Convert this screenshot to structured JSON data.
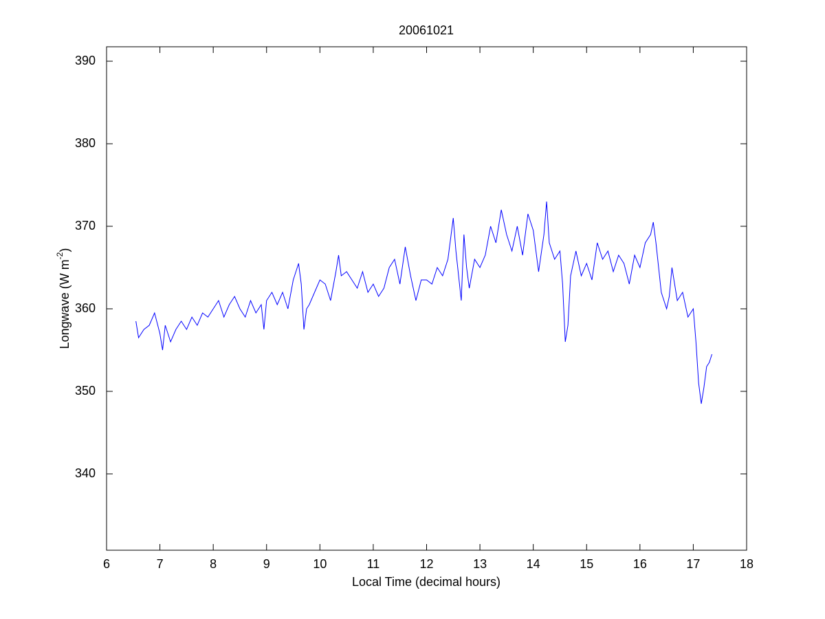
{
  "chart_data": {
    "type": "line",
    "title": "20061021",
    "xlabel": "Local Time (decimal hours)",
    "ylabel": {
      "text": "Longwave (W m",
      "superscript": "-2",
      "suffix": ")"
    },
    "xlim": [
      6,
      18
    ],
    "xticks": [
      6,
      7,
      8,
      9,
      10,
      11,
      12,
      13,
      14,
      15,
      16,
      17,
      18
    ],
    "ylim": [
      330.75,
      391.75
    ],
    "yticks": [
      340,
      350,
      360,
      370,
      380,
      390
    ],
    "series": [
      {
        "color": "#0000ff",
        "x": [
          6.55,
          6.6,
          6.7,
          6.8,
          6.9,
          7.0,
          7.05,
          7.1,
          7.2,
          7.3,
          7.4,
          7.5,
          7.6,
          7.7,
          7.8,
          7.9,
          8.0,
          8.1,
          8.2,
          8.3,
          8.4,
          8.5,
          8.6,
          8.7,
          8.8,
          8.9,
          8.95,
          9.0,
          9.1,
          9.2,
          9.3,
          9.4,
          9.5,
          9.6,
          9.65,
          9.7,
          9.75,
          9.8,
          9.9,
          10.0,
          10.1,
          10.2,
          10.3,
          10.35,
          10.4,
          10.5,
          10.6,
          10.7,
          10.8,
          10.9,
          11.0,
          11.1,
          11.2,
          11.3,
          11.4,
          11.5,
          11.6,
          11.7,
          11.8,
          11.9,
          12.0,
          12.1,
          12.2,
          12.3,
          12.4,
          12.5,
          12.55,
          12.6,
          12.65,
          12.7,
          12.75,
          12.8,
          12.9,
          13.0,
          13.1,
          13.2,
          13.3,
          13.4,
          13.5,
          13.6,
          13.7,
          13.8,
          13.9,
          14.0,
          14.1,
          14.2,
          14.25,
          14.3,
          14.4,
          14.5,
          14.55,
          14.6,
          14.65,
          14.7,
          14.8,
          14.9,
          15.0,
          15.1,
          15.2,
          15.3,
          15.4,
          15.5,
          15.6,
          15.7,
          15.8,
          15.9,
          16.0,
          16.1,
          16.2,
          16.25,
          16.3,
          16.4,
          16.5,
          16.55,
          16.6,
          16.7,
          16.8,
          16.9,
          17.0,
          17.05,
          17.1,
          17.15,
          17.2,
          17.25,
          17.3,
          17.35
        ],
        "values": [
          358.5,
          356.5,
          357.5,
          358,
          359.5,
          357,
          355,
          358,
          356,
          357.5,
          358.5,
          357.5,
          359,
          358,
          359.5,
          359,
          360,
          361,
          359,
          360.5,
          361.5,
          360,
          359,
          361,
          359.5,
          360.5,
          357.5,
          361,
          362,
          360.5,
          362,
          360,
          363.5,
          365.5,
          363,
          357.5,
          360,
          360.5,
          362,
          363.5,
          363,
          361,
          364.5,
          366.5,
          364,
          364.5,
          363.5,
          362.5,
          364.5,
          362,
          363,
          361.5,
          362.5,
          365,
          366,
          363,
          367.5,
          364,
          361,
          363.5,
          363.5,
          363,
          365,
          364,
          366,
          371,
          367,
          364,
          361,
          369,
          365,
          362.5,
          366,
          365,
          366.5,
          370,
          368,
          372,
          369,
          367,
          370,
          366.5,
          371.5,
          369.5,
          364.5,
          369,
          373,
          368,
          366,
          367,
          363,
          356,
          358,
          364,
          367,
          364,
          365.5,
          363.5,
          368,
          366,
          367,
          364.5,
          366.5,
          365.5,
          363,
          366.5,
          365,
          368,
          369,
          370.5,
          368,
          362,
          360,
          361.5,
          365,
          361,
          362,
          359,
          360,
          356,
          351,
          348.5,
          350.5,
          353,
          353.5,
          354.5
        ]
      }
    ]
  }
}
